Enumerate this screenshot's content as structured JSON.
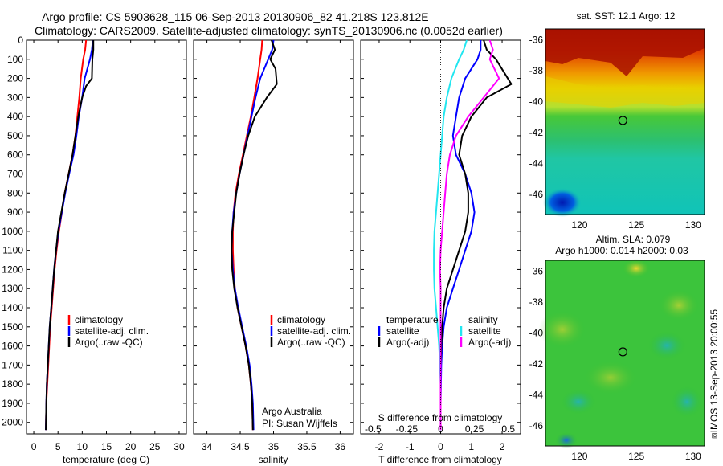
{
  "title_line1": "Argo profile: CS 5903628_115 06-Sep-2013 20130906_82 41.218S 123.812E",
  "title_line2": "Climatology: CARS2009. Satellite-adjusted climatology: synTS_20130906.nc (0.0052d earlier)",
  "side_caption": "⧈IMOS 13-Sep-2013 20:00:55",
  "credit": {
    "line1": "Argo Australia",
    "line2": "PI: Susan Wijffels"
  },
  "colors": {
    "climatology": "#ff0000",
    "satellite": "#0000ff",
    "argo": "#000000",
    "sat_salinity": "#22e6f0",
    "argo_salinity_adj": "#ff00ff"
  },
  "chart_data": [
    {
      "type": "line",
      "name": "temperature-panel",
      "xlabel": "temperature (deg C)",
      "ylabel": "",
      "xlim": [
        -1.5,
        31.5
      ],
      "ylim": [
        0,
        2060
      ],
      "xticks": [
        0,
        5,
        10,
        15,
        20,
        25,
        30
      ],
      "yticks": [
        0,
        100,
        200,
        300,
        400,
        500,
        600,
        700,
        800,
        900,
        1000,
        1100,
        1200,
        1300,
        1400,
        1500,
        1600,
        1700,
        1800,
        1900,
        2000
      ],
      "legend": {
        "placement": "lower-center",
        "entries": [
          "climatology",
          "satellite-adj. clim.",
          "Argo(..raw -QC)"
        ]
      },
      "series": [
        {
          "name": "climatology",
          "color": "#ff0000",
          "x": [
            10.8,
            10.6,
            10.2,
            9.7,
            9.4,
            9.0,
            8.6,
            8.0,
            7.2,
            6.4,
            5.8,
            5.2,
            4.7,
            4.3,
            4.0,
            3.7,
            3.4,
            3.2,
            3.0,
            2.8,
            2.6,
            2.5
          ],
          "y": [
            0,
            50,
            100,
            200,
            300,
            400,
            500,
            600,
            700,
            800,
            900,
            1000,
            1100,
            1200,
            1300,
            1400,
            1500,
            1600,
            1700,
            1800,
            1900,
            2040
          ]
        },
        {
          "name": "satellite-adj. clim.",
          "color": "#0000ff",
          "x": [
            12.2,
            12.0,
            11.6,
            10.5,
            10.0,
            9.3,
            8.8,
            8.2,
            7.3,
            6.5,
            5.8,
            5.1,
            4.6,
            4.2,
            3.9,
            3.6,
            3.3,
            3.1,
            2.9,
            2.7,
            2.6,
            2.5
          ],
          "y": [
            0,
            50,
            100,
            200,
            300,
            400,
            500,
            600,
            700,
            800,
            900,
            1000,
            1100,
            1200,
            1300,
            1400,
            1500,
            1600,
            1700,
            1800,
            1900,
            2040
          ]
        },
        {
          "name": "Argo(..raw -QC)",
          "color": "#000000",
          "x": [
            12.3,
            12.3,
            12.1,
            12.0,
            10.8,
            10.0,
            9.2,
            8.6,
            8.0,
            7.2,
            6.4,
            5.7,
            5.0,
            4.6,
            4.2,
            3.9,
            3.6,
            3.3,
            3.1,
            2.9,
            2.7,
            2.6,
            2.5
          ],
          "y": [
            0,
            50,
            100,
            200,
            240,
            300,
            400,
            500,
            600,
            700,
            800,
            900,
            1000,
            1100,
            1200,
            1300,
            1400,
            1500,
            1600,
            1700,
            1800,
            1900,
            2040
          ]
        }
      ]
    },
    {
      "type": "line",
      "name": "salinity-panel",
      "xlabel": "salinity",
      "ylabel": "",
      "xlim": [
        33.8,
        36.2
      ],
      "ylim": [
        0,
        2060
      ],
      "xticks": [
        34,
        34.5,
        35,
        35.5,
        36
      ],
      "legend": {
        "placement": "lower-center",
        "entries": [
          "climatology",
          "satellite-adj. clim.",
          "Argo(..raw -QC)"
        ]
      },
      "series": [
        {
          "name": "climatology",
          "color": "#ff0000",
          "x": [
            34.83,
            34.82,
            34.8,
            34.76,
            34.71,
            34.66,
            34.6,
            34.54,
            34.48,
            34.43,
            34.4,
            34.39,
            34.39,
            34.4,
            34.42,
            34.46,
            34.52,
            34.58,
            34.63,
            34.66,
            34.68,
            34.69
          ],
          "y": [
            0,
            50,
            100,
            200,
            300,
            400,
            500,
            600,
            700,
            800,
            900,
            1000,
            1100,
            1200,
            1300,
            1400,
            1500,
            1600,
            1700,
            1800,
            1900,
            2040
          ]
        },
        {
          "name": "satellite-adj. clim.",
          "color": "#0000ff",
          "x": [
            35.0,
            34.98,
            34.92,
            34.8,
            34.73,
            34.67,
            34.61,
            34.55,
            34.49,
            34.44,
            34.4,
            34.38,
            34.37,
            34.39,
            34.42,
            34.47,
            34.53,
            34.59,
            34.64,
            34.67,
            34.69,
            34.7
          ],
          "y": [
            0,
            50,
            100,
            200,
            300,
            400,
            500,
            600,
            700,
            800,
            900,
            1000,
            1100,
            1200,
            1300,
            1400,
            1500,
            1600,
            1700,
            1800,
            1900,
            2040
          ]
        },
        {
          "name": "Argo(..raw -QC)",
          "color": "#000000",
          "x": [
            34.97,
            35.02,
            34.95,
            35.03,
            35.05,
            34.9,
            34.72,
            34.62,
            34.55,
            34.49,
            34.44,
            34.41,
            34.38,
            34.37,
            34.38,
            34.41,
            34.46,
            34.52,
            34.58,
            34.63,
            34.66,
            34.68,
            34.69
          ],
          "y": [
            0,
            50,
            100,
            150,
            230,
            300,
            400,
            500,
            600,
            700,
            800,
            900,
            1000,
            1100,
            1200,
            1300,
            1400,
            1500,
            1600,
            1700,
            1800,
            1900,
            2040
          ]
        }
      ]
    },
    {
      "type": "line",
      "name": "difference-panel",
      "xlabel": "T difference from climatology",
      "xlabel_top": "S difference from climatology",
      "ylabel": "",
      "xlim": [
        -2.6,
        2.6
      ],
      "ylim": [
        0,
        2060
      ],
      "xticks": [
        -2,
        -1,
        0,
        1,
        2
      ],
      "xticks_salinity": [
        "-0.5",
        "-0.25",
        "0",
        "0.25",
        "0.5"
      ],
      "legend": {
        "placement": "lower-center",
        "groups": [
          "temperature",
          "salinity"
        ],
        "entries": [
          "satellite",
          "Argo(-adj)",
          "satellite",
          "Argo(-adj)"
        ]
      },
      "series": [
        {
          "name": "temperature satellite",
          "color": "#0000ff",
          "x": [
            1.3,
            1.3,
            1.2,
            0.8,
            0.6,
            0.5,
            0.4,
            0.5,
            0.8,
            1.0,
            1.1,
            1.0,
            0.8,
            0.6,
            0.4,
            0.2,
            0.1,
            0.05,
            0.02,
            0.01,
            0.0,
            0.0
          ],
          "y": [
            0,
            50,
            100,
            200,
            300,
            400,
            500,
            600,
            700,
            800,
            900,
            1000,
            1100,
            1200,
            1300,
            1400,
            1500,
            1600,
            1700,
            1800,
            1900,
            2040
          ]
        },
        {
          "name": "temperature Argo(-adj)",
          "color": "#000000",
          "x": [
            1.4,
            1.5,
            1.8,
            2.3,
            1.5,
            1.0,
            0.7,
            0.6,
            0.8,
            0.9,
            0.9,
            0.8,
            0.6,
            0.4,
            0.2,
            0.1,
            0.05,
            0.02,
            0.0,
            0.0,
            0.0,
            0.0
          ],
          "y": [
            0,
            50,
            100,
            230,
            300,
            400,
            500,
            600,
            700,
            800,
            900,
            1000,
            1100,
            1200,
            1300,
            1400,
            1500,
            1600,
            1700,
            1800,
            1900,
            2040
          ]
        },
        {
          "name": "salinity satellite",
          "color": "#22e6f0",
          "x": [
            0.85,
            0.75,
            0.6,
            0.35,
            0.2,
            0.1,
            0.05,
            0.0,
            -0.05,
            -0.1,
            -0.15,
            -0.2,
            -0.22,
            -0.22,
            -0.2,
            -0.15,
            -0.1,
            -0.05,
            -0.02,
            0.0,
            0.0,
            0.0
          ],
          "y": [
            0,
            50,
            100,
            200,
            300,
            400,
            500,
            600,
            700,
            800,
            900,
            1000,
            1100,
            1200,
            1300,
            1400,
            1500,
            1600,
            1700,
            1800,
            1900,
            2040
          ]
        },
        {
          "name": "salinity Argo(-adj)",
          "color": "#ff00ff",
          "x": [
            1.6,
            1.7,
            1.6,
            1.9,
            1.4,
            0.9,
            0.5,
            0.3,
            0.2,
            0.15,
            0.1,
            0.05,
            0.0,
            -0.02,
            0.0,
            0.0,
            0.0,
            0.0,
            0.0,
            0.0,
            0.0,
            0.0
          ],
          "y": [
            0,
            50,
            100,
            200,
            300,
            400,
            500,
            600,
            700,
            800,
            900,
            1000,
            1100,
            1200,
            1300,
            1400,
            1500,
            1600,
            1700,
            1800,
            1900,
            2040
          ]
        }
      ]
    },
    {
      "type": "heatmap",
      "name": "sst-map",
      "title": "sat. SST: 12.1  Argo: 12",
      "xlim": [
        117,
        131
      ],
      "ylim": [
        -47.3,
        -35.3
      ],
      "xticks": [
        120,
        125,
        130
      ],
      "yticks": [
        -36,
        -38,
        -40,
        -42,
        -44,
        -46
      ],
      "argo_position": {
        "lon": 123.812,
        "lat": -41.218
      }
    },
    {
      "type": "heatmap",
      "name": "sla-map",
      "title": "Altim. SLA: 0.079",
      "subtitle": "Argo h1000: 0.014 h2000: 0.03",
      "xlim": [
        117,
        131
      ],
      "ylim": [
        -47.3,
        -35.3
      ],
      "xticks": [
        120,
        125,
        130
      ],
      "yticks": [
        -36,
        -38,
        -40,
        -42,
        -44,
        -46
      ],
      "argo_position": {
        "lon": 123.812,
        "lat": -41.218
      }
    }
  ]
}
